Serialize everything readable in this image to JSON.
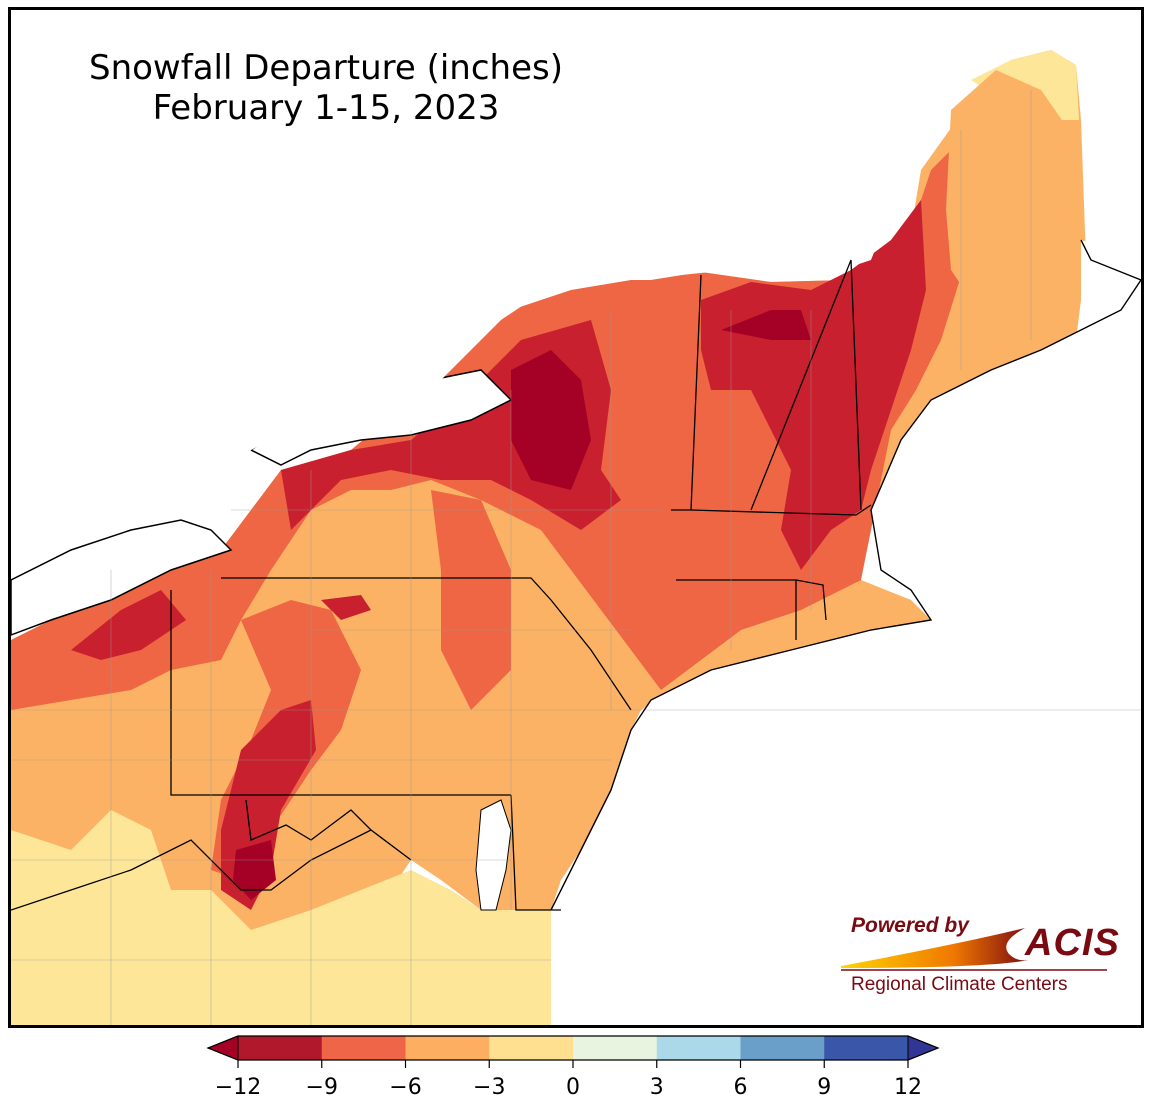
{
  "title": {
    "line1": "Snowfall Departure (inches)",
    "line2": "February 1-15, 2023"
  },
  "logo": {
    "powered_by": "Powered by",
    "name": "ACIS",
    "subtitle": "Regional Climate Centers"
  },
  "legend": {
    "ticks": [
      "−12",
      "−9",
      "−6",
      "−3",
      "0",
      "3",
      "6",
      "9",
      "12"
    ],
    "colors": [
      "#b2182b",
      "#ef6548",
      "#fdae61",
      "#fee090",
      "#e8f4e0",
      "#abd9e9",
      "#6a9fc9",
      "#3a56a8"
    ],
    "extend_low_color": "#a50026",
    "extend_high_color": "#313695"
  },
  "palette": {
    "very_low": "#a50026",
    "low": "#c8202e",
    "mid_low": "#ee6644",
    "mid": "#fbb265",
    "near_zero": "#fee699",
    "water": "#ffffff"
  }
}
